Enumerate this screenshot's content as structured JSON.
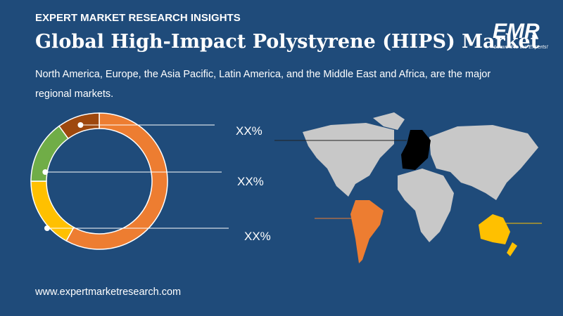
{
  "header": "EXPERT MARKET RESEARCH INSIGHTS",
  "logo": {
    "name": "EMR",
    "tagline": "Leave it to the Experts!"
  },
  "chart_data": {
    "type": "donut",
    "title": "Global High-Impact Polystyrene (HIPS) Market",
    "subtitle": "North America, Europe, the Asia Pacific, Latin America, and the Middle East and Africa, are the major regional markets.",
    "values": [
      58,
      17,
      15,
      10
    ],
    "colors": [
      "#ed7d31",
      "#ffc000",
      "#70ad47",
      "#9e480e"
    ],
    "annotations": [
      "XX%",
      "XX%",
      "XX%"
    ]
  },
  "footer": "www.expertmarketresearch.com"
}
